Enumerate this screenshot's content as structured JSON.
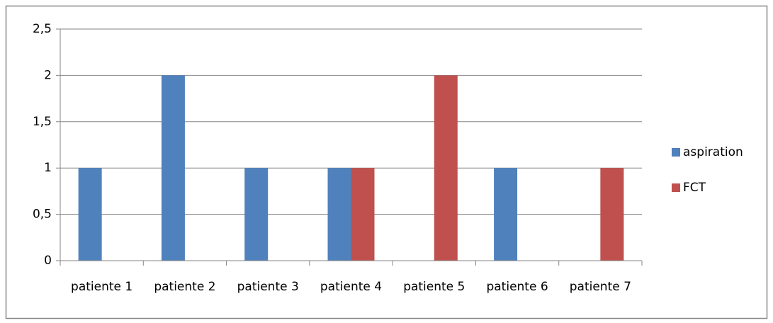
{
  "chart_data": {
    "type": "bar",
    "categories": [
      "patiente 1",
      "patiente 2",
      "patiente 3",
      "patiente 4",
      "patiente 5",
      "patiente 6",
      "patiente 7"
    ],
    "series": [
      {
        "name": "aspiration",
        "color": "#4f81bd",
        "values": [
          1,
          2,
          1,
          1,
          0,
          1,
          0
        ]
      },
      {
        "name": "FCT",
        "color": "#c0504d",
        "values": [
          0,
          0,
          0,
          1,
          2,
          0,
          1
        ]
      }
    ],
    "ylim": [
      0,
      2.5
    ],
    "yticks": [
      0,
      {
        "value": 0.5,
        "label": "0,5"
      },
      1,
      {
        "value": 1.5,
        "label": "1,5"
      },
      2,
      {
        "value": 2.5,
        "label": "2,5"
      }
    ],
    "grid": true,
    "legend": "right"
  }
}
